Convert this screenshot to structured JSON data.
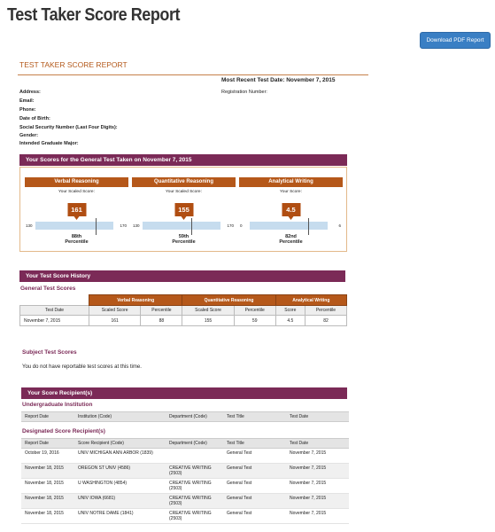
{
  "page": {
    "title": "Test Taker Score Report",
    "download_label": "Download PDF Report"
  },
  "report": {
    "header": "TEST TAKER SCORE REPORT",
    "recent_test_date": "Most Recent Test Date: November 7, 2015",
    "registration_label": "Registration Number:",
    "fields": [
      "Address:",
      "Email:",
      "Phone:",
      "Date of Birth:",
      "Social Security Number (Last Four Digits):",
      "Gender:",
      "Intended Graduate Major:"
    ]
  },
  "scores": {
    "section_title": "Your Scores for the General Test Taken on November 7, 2015",
    "panels": [
      {
        "name": "Verbal Reasoning",
        "label": "Your Scaled Score:",
        "value": "161",
        "min": "130",
        "max": "170",
        "percentile": "88th",
        "percentile_label": "Percentile",
        "fraction": 0.775
      },
      {
        "name": "Quantitative Reasoning",
        "label": "Your Scaled Score:",
        "value": "155",
        "min": "130",
        "max": "170",
        "percentile": "59th",
        "percentile_label": "Percentile",
        "fraction": 0.625
      },
      {
        "name": "Analytical Writing",
        "label": "Your Score:",
        "value": "4.5",
        "min": "0",
        "max": "6",
        "percentile": "82nd",
        "percentile_label": "Percentile",
        "fraction": 0.75
      }
    ]
  },
  "history": {
    "section_title": "Your Test Score History",
    "general_title": "General Test Scores",
    "groups": [
      "Verbal Reasoning",
      "Quantitative Reasoning",
      "Analytical Writing"
    ],
    "columns": [
      "Test Date",
      "Scaled Score",
      "Percentile",
      "Scaled Score",
      "Percentile",
      "Score",
      "Percentile"
    ],
    "rows": [
      [
        "November 7, 2015",
        "161",
        "88",
        "155",
        "59",
        "4.5",
        "82"
      ]
    ],
    "subject_title": "Subject Test Scores",
    "subject_none": "You do not have reportable test scores at this time."
  },
  "recipients": {
    "section_title": "Your Score Recipient(s)",
    "undergrad_title": "Undergraduate Institution",
    "undergrad_columns": [
      "Report Date",
      "Institution (Code)",
      "Department (Code)",
      "Test Title",
      "Test Date"
    ],
    "designated_title": "Designated Score Recipient(s)",
    "designated_columns": [
      "Report Date",
      "Score Recipient (Code)",
      "Department (Code)",
      "Test Title",
      "Test Date"
    ],
    "rows": [
      [
        "October 19, 2016",
        "UNIV MICHIGAN ANN ARBOR (1839)",
        "",
        "General Test",
        "November 7, 2015"
      ],
      [
        "November 18, 2015",
        "OREGON ST UNIV (4586)",
        "CREATIVE WRITING (2503)",
        "General Test",
        "November 7, 2015"
      ],
      [
        "November 18, 2015",
        "U WASHINGTON (4854)",
        "CREATIVE WRITING (2503)",
        "General Test",
        "November 7, 2015"
      ],
      [
        "November 18, 2015",
        "UNIV IOWA (6681)",
        "CREATIVE WRITING (2503)",
        "General Test",
        "November 7, 2015"
      ],
      [
        "November 18, 2015",
        "UNIV NOTRE DAME (1841)",
        "CREATIVE WRITING (2503)",
        "General Test",
        "November 7, 2015"
      ]
    ]
  }
}
